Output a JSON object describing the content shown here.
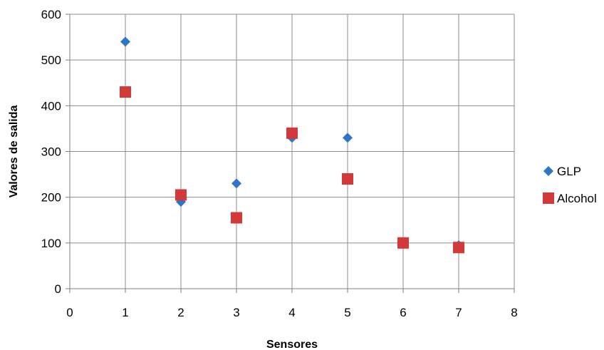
{
  "chart_data": {
    "type": "scatter",
    "title": "",
    "xlabel": "Sensores",
    "ylabel": "Valores de salida",
    "xlim": [
      0,
      8
    ],
    "ylim": [
      0,
      600
    ],
    "xticks": [
      0,
      1,
      2,
      3,
      4,
      5,
      6,
      7,
      8
    ],
    "yticks": [
      0,
      100,
      200,
      300,
      400,
      500,
      600
    ],
    "xtick_labels": [
      "0",
      "1",
      "2",
      "3",
      "4",
      "5",
      "6",
      "7",
      "8"
    ],
    "ytick_labels": [
      "0",
      "100",
      "200",
      "300",
      "400",
      "500",
      "600"
    ],
    "grid": true,
    "legend": "right",
    "series": [
      {
        "name": "GLP",
        "marker": "diamond",
        "color": "#2E75C6",
        "x": [
          1,
          2,
          3,
          4,
          5,
          6,
          7
        ],
        "y": [
          540,
          190,
          230,
          330,
          330,
          100,
          95
        ]
      },
      {
        "name": "Alcohol",
        "marker": "square",
        "color": "#D23A3A",
        "x": [
          1,
          2,
          3,
          4,
          5,
          6,
          7
        ],
        "y": [
          430,
          205,
          155,
          340,
          240,
          100,
          90
        ]
      }
    ]
  }
}
